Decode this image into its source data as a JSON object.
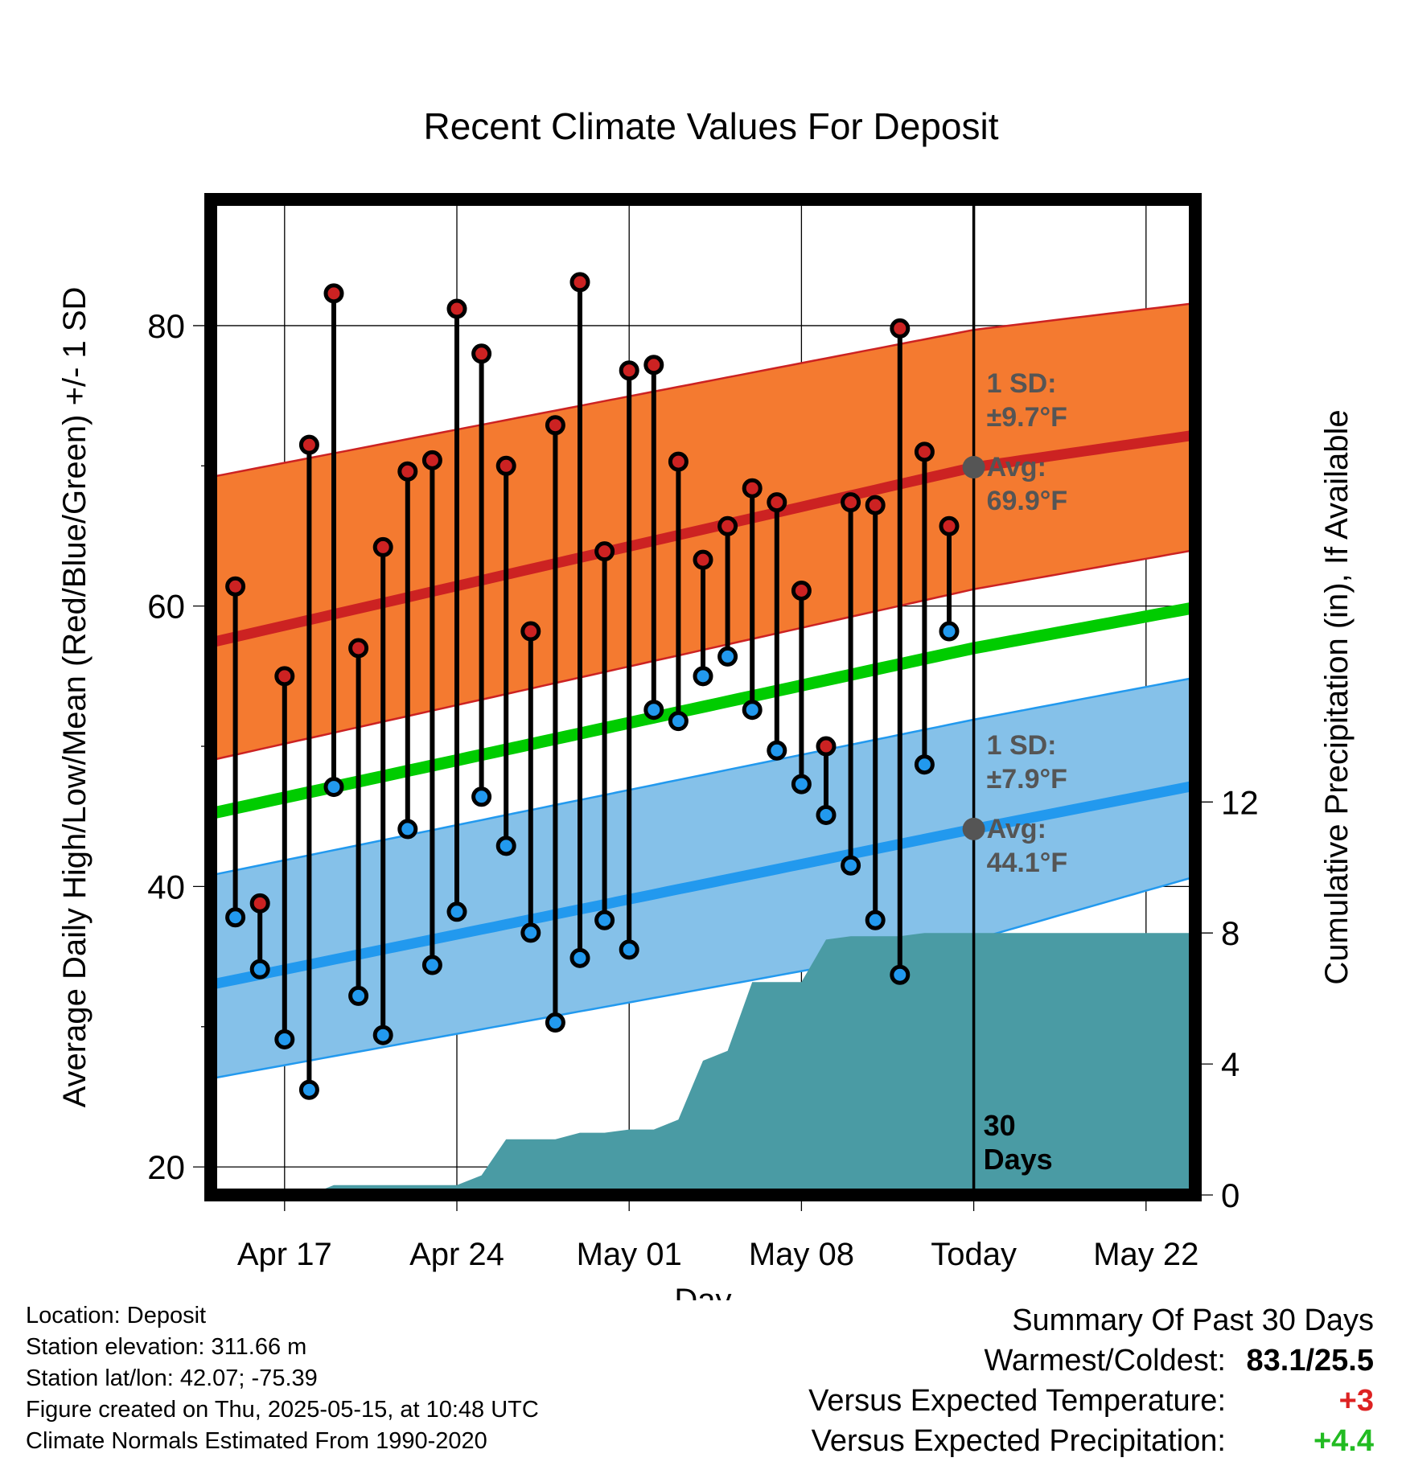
{
  "chart_data": {
    "type": "line",
    "title": "Recent Climate Values For Deposit",
    "xlabel": "Day",
    "ylabel": "Average Daily High/Low/Mean (Red/Blue/Green) +/- 1 SD",
    "y2label": "Cumulative Precipitation (in), If Available",
    "x_ticks": [
      "Apr 17",
      "Apr 24",
      "May 01",
      "May 08",
      "Today",
      "May 22"
    ],
    "x_range": [
      "2025-04-14",
      "2025-05-24"
    ],
    "today": "2025-05-15",
    "ylim": [
      18,
      89
    ],
    "y_ticks": [
      20,
      40,
      60,
      80
    ],
    "y2lim": [
      0,
      30.4
    ],
    "y2_ticks": [
      0,
      4,
      8,
      12
    ],
    "grid": true,
    "series": [
      {
        "name": "High",
        "color": "#cc2222",
        "dates": [
          "2025-04-15",
          "2025-04-16",
          "2025-04-17",
          "2025-04-18",
          "2025-04-19",
          "2025-04-20",
          "2025-04-21",
          "2025-04-22",
          "2025-04-23",
          "2025-04-24",
          "2025-04-25",
          "2025-04-26",
          "2025-04-27",
          "2025-04-28",
          "2025-04-29",
          "2025-04-30",
          "2025-05-01",
          "2025-05-02",
          "2025-05-03",
          "2025-05-04",
          "2025-05-05",
          "2025-05-06",
          "2025-05-07",
          "2025-05-08",
          "2025-05-09",
          "2025-05-10",
          "2025-05-11",
          "2025-05-12",
          "2025-05-13",
          "2025-05-14"
        ],
        "values": [
          61.4,
          38.8,
          55.0,
          71.5,
          82.3,
          57.0,
          64.2,
          69.6,
          70.4,
          81.2,
          78.0,
          70.0,
          58.2,
          72.9,
          83.1,
          63.9,
          76.8,
          77.2,
          70.3,
          63.3,
          65.7,
          68.4,
          67.4,
          61.1,
          50.0,
          67.4,
          67.2,
          79.8,
          71.0,
          65.7
        ]
      },
      {
        "name": "Low",
        "color": "#2299ee",
        "dates": [
          "2025-04-15",
          "2025-04-16",
          "2025-04-17",
          "2025-04-18",
          "2025-04-19",
          "2025-04-20",
          "2025-04-21",
          "2025-04-22",
          "2025-04-23",
          "2025-04-24",
          "2025-04-25",
          "2025-04-26",
          "2025-04-27",
          "2025-04-28",
          "2025-04-29",
          "2025-04-30",
          "2025-05-01",
          "2025-05-02",
          "2025-05-03",
          "2025-05-04",
          "2025-05-05",
          "2025-05-06",
          "2025-05-07",
          "2025-05-08",
          "2025-05-09",
          "2025-05-10",
          "2025-05-11",
          "2025-05-12",
          "2025-05-13",
          "2025-05-14"
        ],
        "values": [
          37.8,
          34.1,
          29.1,
          25.5,
          47.1,
          32.2,
          29.4,
          44.1,
          34.4,
          38.2,
          46.4,
          42.9,
          36.7,
          30.3,
          34.9,
          37.6,
          35.5,
          52.6,
          51.8,
          55.0,
          56.4,
          52.6,
          49.7,
          47.3,
          45.1,
          41.5,
          37.6,
          33.7,
          48.7,
          58.2
        ]
      }
    ],
    "normals": {
      "dates": [
        "2025-04-14",
        "2025-05-15",
        "2025-05-24"
      ],
      "mean": [
        45.2,
        57.0,
        59.9
      ],
      "high_avg": [
        57.4,
        69.9,
        72.2
      ],
      "high_sd_band": [
        [
          49.0,
          69.2
        ],
        [
          61.2,
          79.7
        ],
        [
          64.0,
          81.6
        ]
      ],
      "low_avg": [
        33.0,
        44.1,
        47.2
      ],
      "low_sd_band": [
        [
          26.3,
          40.8
        ],
        [
          36.2,
          51.9
        ],
        [
          40.7,
          54.9
        ]
      ]
    },
    "precipitation": {
      "dates": [
        "2025-04-17",
        "2025-04-18",
        "2025-04-19",
        "2025-04-20",
        "2025-04-21",
        "2025-04-22",
        "2025-04-23",
        "2025-04-24",
        "2025-04-25",
        "2025-04-26",
        "2025-04-27",
        "2025-04-28",
        "2025-04-29",
        "2025-04-30",
        "2025-05-01",
        "2025-05-02",
        "2025-05-03",
        "2025-05-04",
        "2025-05-05",
        "2025-05-06",
        "2025-05-07",
        "2025-05-08",
        "2025-05-09",
        "2025-05-10",
        "2025-05-11",
        "2025-05-12",
        "2025-05-13",
        "2025-05-14",
        "2025-05-15",
        "2025-05-24"
      ],
      "values": [
        0.0,
        0.0,
        0.3,
        0.3,
        0.3,
        0.3,
        0.3,
        0.3,
        0.6,
        1.7,
        1.7,
        1.7,
        1.9,
        1.9,
        2.0,
        2.0,
        2.3,
        4.1,
        4.4,
        6.5,
        6.5,
        6.5,
        7.8,
        7.9,
        7.9,
        7.9,
        8.0,
        8.0,
        8.0,
        8.0
      ]
    },
    "annotations": {
      "high_sd": [
        "1 SD:",
        "±9.7°F"
      ],
      "high_avg": [
        "Avg:",
        "69.9°F"
      ],
      "low_sd": [
        "1 SD:",
        "±7.9°F"
      ],
      "low_avg": [
        "Avg:",
        "44.1°F"
      ],
      "period": [
        "30",
        "Days"
      ]
    },
    "colors": {
      "high_band": "#f47a30",
      "high_line": "#cc2222",
      "low_band": "#85c1e9",
      "low_line": "#2299ee",
      "mean_line": "#00cc00",
      "precip": "#4a9ba4"
    }
  },
  "meta": {
    "location": "Location: Deposit",
    "elevation": "Station elevation: 311.66 m",
    "latlon": "Station lat/lon: 42.07; -75.39",
    "created": "Figure created on Thu, 2025-05-15, at 10:48 UTC",
    "normals": "Climate Normals Estimated From 1990-2020"
  },
  "summary": {
    "heading": "Summary Of Past 30 Days",
    "warm_cold_label": "Warmest/Coldest:",
    "warm_cold_value": "83.1/25.5",
    "temp_label": "Versus Expected Temperature:",
    "temp_value": "+3",
    "temp_color": "#dd2222",
    "precip_label": "Versus Expected Precipitation:",
    "precip_value": "+4.4",
    "precip_color": "#22bb22"
  }
}
